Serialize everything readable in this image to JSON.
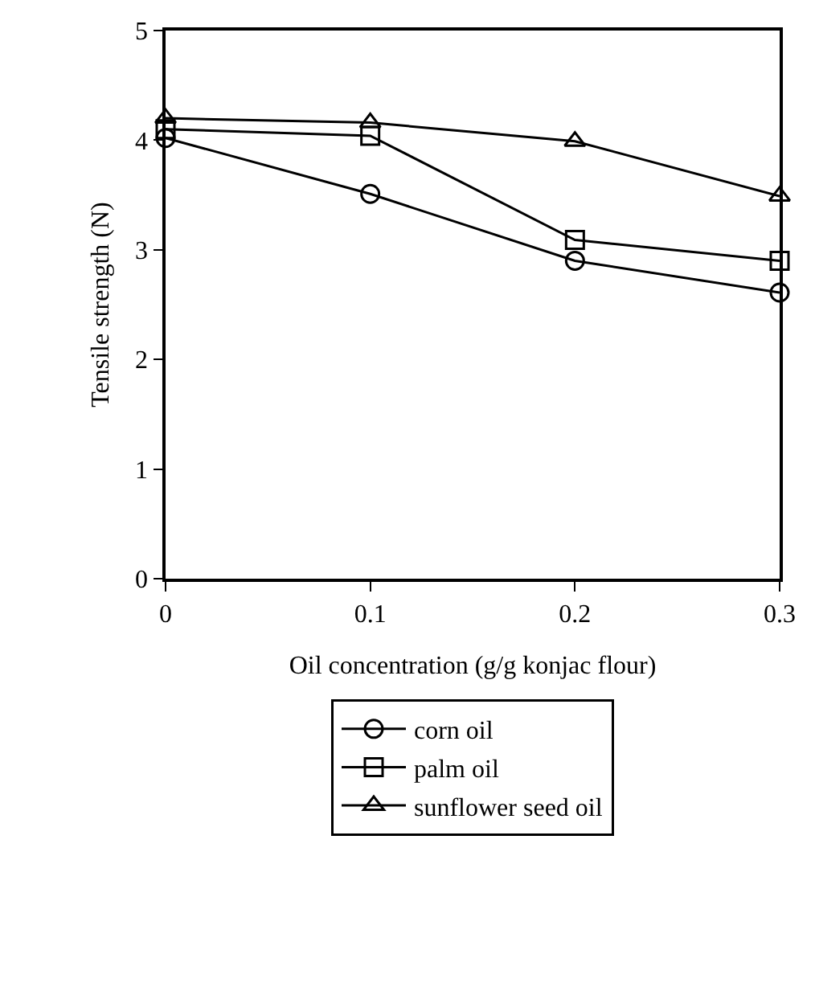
{
  "chart_data": {
    "type": "line",
    "xlabel": "Oil concentration (g/g konjac flour)",
    "ylabel": "Tensile strength (N)",
    "x": [
      0,
      0.1,
      0.2,
      0.3
    ],
    "series": [
      {
        "name": "corn oil",
        "color": "#000000",
        "marker": "circle",
        "values": [
          4.02,
          3.51,
          2.9,
          2.61
        ]
      },
      {
        "name": "palm oil",
        "color": "#000000",
        "marker": "square",
        "values": [
          4.1,
          4.04,
          3.09,
          2.9
        ]
      },
      {
        "name": "sunflower seed oil",
        "color": "#000000",
        "marker": "triangle",
        "values": [
          4.2,
          4.16,
          3.99,
          3.49
        ]
      }
    ],
    "xlim": [
      0,
      0.3
    ],
    "xticks": [
      0,
      0.1,
      0.2,
      0.3
    ],
    "ylim": [
      0,
      5
    ],
    "yticks": [
      0,
      1,
      2,
      3,
      4,
      5
    ],
    "grid": false,
    "legend": "bottom",
    "line_style": "solid"
  }
}
